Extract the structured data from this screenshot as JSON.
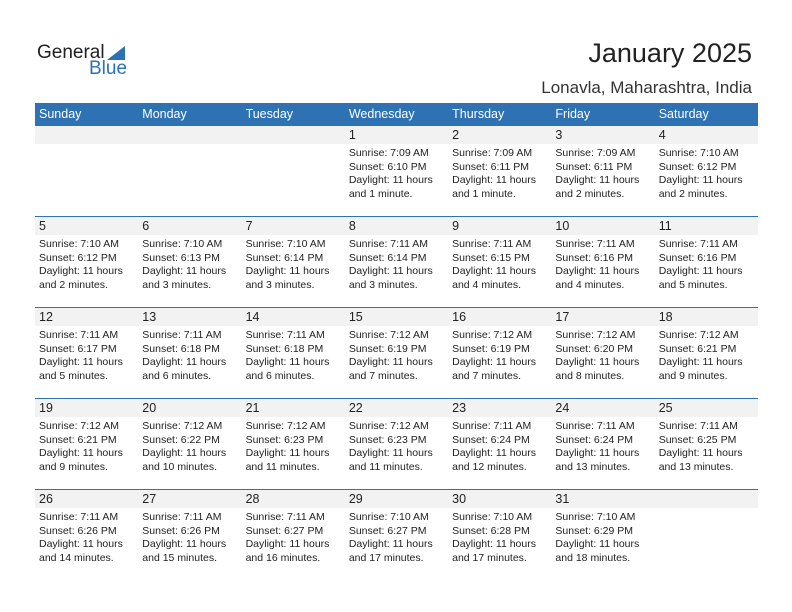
{
  "logo": {
    "text1": "General",
    "text2": "Blue"
  },
  "header": {
    "title": "January 2025",
    "location": "Lonavla, Maharashtra, India"
  },
  "days": [
    "Sunday",
    "Monday",
    "Tuesday",
    "Wednesday",
    "Thursday",
    "Friday",
    "Saturday"
  ],
  "weeks": [
    [
      null,
      null,
      null,
      {
        "day": "1",
        "sunrise": "Sunrise: 7:09 AM",
        "sunset": "Sunset: 6:10 PM",
        "daylight1": "Daylight: 11 hours",
        "daylight2": "and 1 minute."
      },
      {
        "day": "2",
        "sunrise": "Sunrise: 7:09 AM",
        "sunset": "Sunset: 6:11 PM",
        "daylight1": "Daylight: 11 hours",
        "daylight2": "and 1 minute."
      },
      {
        "day": "3",
        "sunrise": "Sunrise: 7:09 AM",
        "sunset": "Sunset: 6:11 PM",
        "daylight1": "Daylight: 11 hours",
        "daylight2": "and 2 minutes."
      },
      {
        "day": "4",
        "sunrise": "Sunrise: 7:10 AM",
        "sunset": "Sunset: 6:12 PM",
        "daylight1": "Daylight: 11 hours",
        "daylight2": "and 2 minutes."
      }
    ],
    [
      {
        "day": "5",
        "sunrise": "Sunrise: 7:10 AM",
        "sunset": "Sunset: 6:12 PM",
        "daylight1": "Daylight: 11 hours",
        "daylight2": "and 2 minutes."
      },
      {
        "day": "6",
        "sunrise": "Sunrise: 7:10 AM",
        "sunset": "Sunset: 6:13 PM",
        "daylight1": "Daylight: 11 hours",
        "daylight2": "and 3 minutes."
      },
      {
        "day": "7",
        "sunrise": "Sunrise: 7:10 AM",
        "sunset": "Sunset: 6:14 PM",
        "daylight1": "Daylight: 11 hours",
        "daylight2": "and 3 minutes."
      },
      {
        "day": "8",
        "sunrise": "Sunrise: 7:11 AM",
        "sunset": "Sunset: 6:14 PM",
        "daylight1": "Daylight: 11 hours",
        "daylight2": "and 3 minutes."
      },
      {
        "day": "9",
        "sunrise": "Sunrise: 7:11 AM",
        "sunset": "Sunset: 6:15 PM",
        "daylight1": "Daylight: 11 hours",
        "daylight2": "and 4 minutes."
      },
      {
        "day": "10",
        "sunrise": "Sunrise: 7:11 AM",
        "sunset": "Sunset: 6:16 PM",
        "daylight1": "Daylight: 11 hours",
        "daylight2": "and 4 minutes."
      },
      {
        "day": "11",
        "sunrise": "Sunrise: 7:11 AM",
        "sunset": "Sunset: 6:16 PM",
        "daylight1": "Daylight: 11 hours",
        "daylight2": "and 5 minutes."
      }
    ],
    [
      {
        "day": "12",
        "sunrise": "Sunrise: 7:11 AM",
        "sunset": "Sunset: 6:17 PM",
        "daylight1": "Daylight: 11 hours",
        "daylight2": "and 5 minutes."
      },
      {
        "day": "13",
        "sunrise": "Sunrise: 7:11 AM",
        "sunset": "Sunset: 6:18 PM",
        "daylight1": "Daylight: 11 hours",
        "daylight2": "and 6 minutes."
      },
      {
        "day": "14",
        "sunrise": "Sunrise: 7:11 AM",
        "sunset": "Sunset: 6:18 PM",
        "daylight1": "Daylight: 11 hours",
        "daylight2": "and 6 minutes."
      },
      {
        "day": "15",
        "sunrise": "Sunrise: 7:12 AM",
        "sunset": "Sunset: 6:19 PM",
        "daylight1": "Daylight: 11 hours",
        "daylight2": "and 7 minutes."
      },
      {
        "day": "16",
        "sunrise": "Sunrise: 7:12 AM",
        "sunset": "Sunset: 6:19 PM",
        "daylight1": "Daylight: 11 hours",
        "daylight2": "and 7 minutes."
      },
      {
        "day": "17",
        "sunrise": "Sunrise: 7:12 AM",
        "sunset": "Sunset: 6:20 PM",
        "daylight1": "Daylight: 11 hours",
        "daylight2": "and 8 minutes."
      },
      {
        "day": "18",
        "sunrise": "Sunrise: 7:12 AM",
        "sunset": "Sunset: 6:21 PM",
        "daylight1": "Daylight: 11 hours",
        "daylight2": "and 9 minutes."
      }
    ],
    [
      {
        "day": "19",
        "sunrise": "Sunrise: 7:12 AM",
        "sunset": "Sunset: 6:21 PM",
        "daylight1": "Daylight: 11 hours",
        "daylight2": "and 9 minutes."
      },
      {
        "day": "20",
        "sunrise": "Sunrise: 7:12 AM",
        "sunset": "Sunset: 6:22 PM",
        "daylight1": "Daylight: 11 hours",
        "daylight2": "and 10 minutes."
      },
      {
        "day": "21",
        "sunrise": "Sunrise: 7:12 AM",
        "sunset": "Sunset: 6:23 PM",
        "daylight1": "Daylight: 11 hours",
        "daylight2": "and 11 minutes."
      },
      {
        "day": "22",
        "sunrise": "Sunrise: 7:12 AM",
        "sunset": "Sunset: 6:23 PM",
        "daylight1": "Daylight: 11 hours",
        "daylight2": "and 11 minutes."
      },
      {
        "day": "23",
        "sunrise": "Sunrise: 7:11 AM",
        "sunset": "Sunset: 6:24 PM",
        "daylight1": "Daylight: 11 hours",
        "daylight2": "and 12 minutes."
      },
      {
        "day": "24",
        "sunrise": "Sunrise: 7:11 AM",
        "sunset": "Sunset: 6:24 PM",
        "daylight1": "Daylight: 11 hours",
        "daylight2": "and 13 minutes."
      },
      {
        "day": "25",
        "sunrise": "Sunrise: 7:11 AM",
        "sunset": "Sunset: 6:25 PM",
        "daylight1": "Daylight: 11 hours",
        "daylight2": "and 13 minutes."
      }
    ],
    [
      {
        "day": "26",
        "sunrise": "Sunrise: 7:11 AM",
        "sunset": "Sunset: 6:26 PM",
        "daylight1": "Daylight: 11 hours",
        "daylight2": "and 14 minutes."
      },
      {
        "day": "27",
        "sunrise": "Sunrise: 7:11 AM",
        "sunset": "Sunset: 6:26 PM",
        "daylight1": "Daylight: 11 hours",
        "daylight2": "and 15 minutes."
      },
      {
        "day": "28",
        "sunrise": "Sunrise: 7:11 AM",
        "sunset": "Sunset: 6:27 PM",
        "daylight1": "Daylight: 11 hours",
        "daylight2": "and 16 minutes."
      },
      {
        "day": "29",
        "sunrise": "Sunrise: 7:10 AM",
        "sunset": "Sunset: 6:27 PM",
        "daylight1": "Daylight: 11 hours",
        "daylight2": "and 17 minutes."
      },
      {
        "day": "30",
        "sunrise": "Sunrise: 7:10 AM",
        "sunset": "Sunset: 6:28 PM",
        "daylight1": "Daylight: 11 hours",
        "daylight2": "and 17 minutes."
      },
      {
        "day": "31",
        "sunrise": "Sunrise: 7:10 AM",
        "sunset": "Sunset: 6:29 PM",
        "daylight1": "Daylight: 11 hours",
        "daylight2": "and 18 minutes."
      },
      null
    ]
  ],
  "colors": {
    "accent": "#2e72b4",
    "day_band": "#f2f2f2"
  }
}
